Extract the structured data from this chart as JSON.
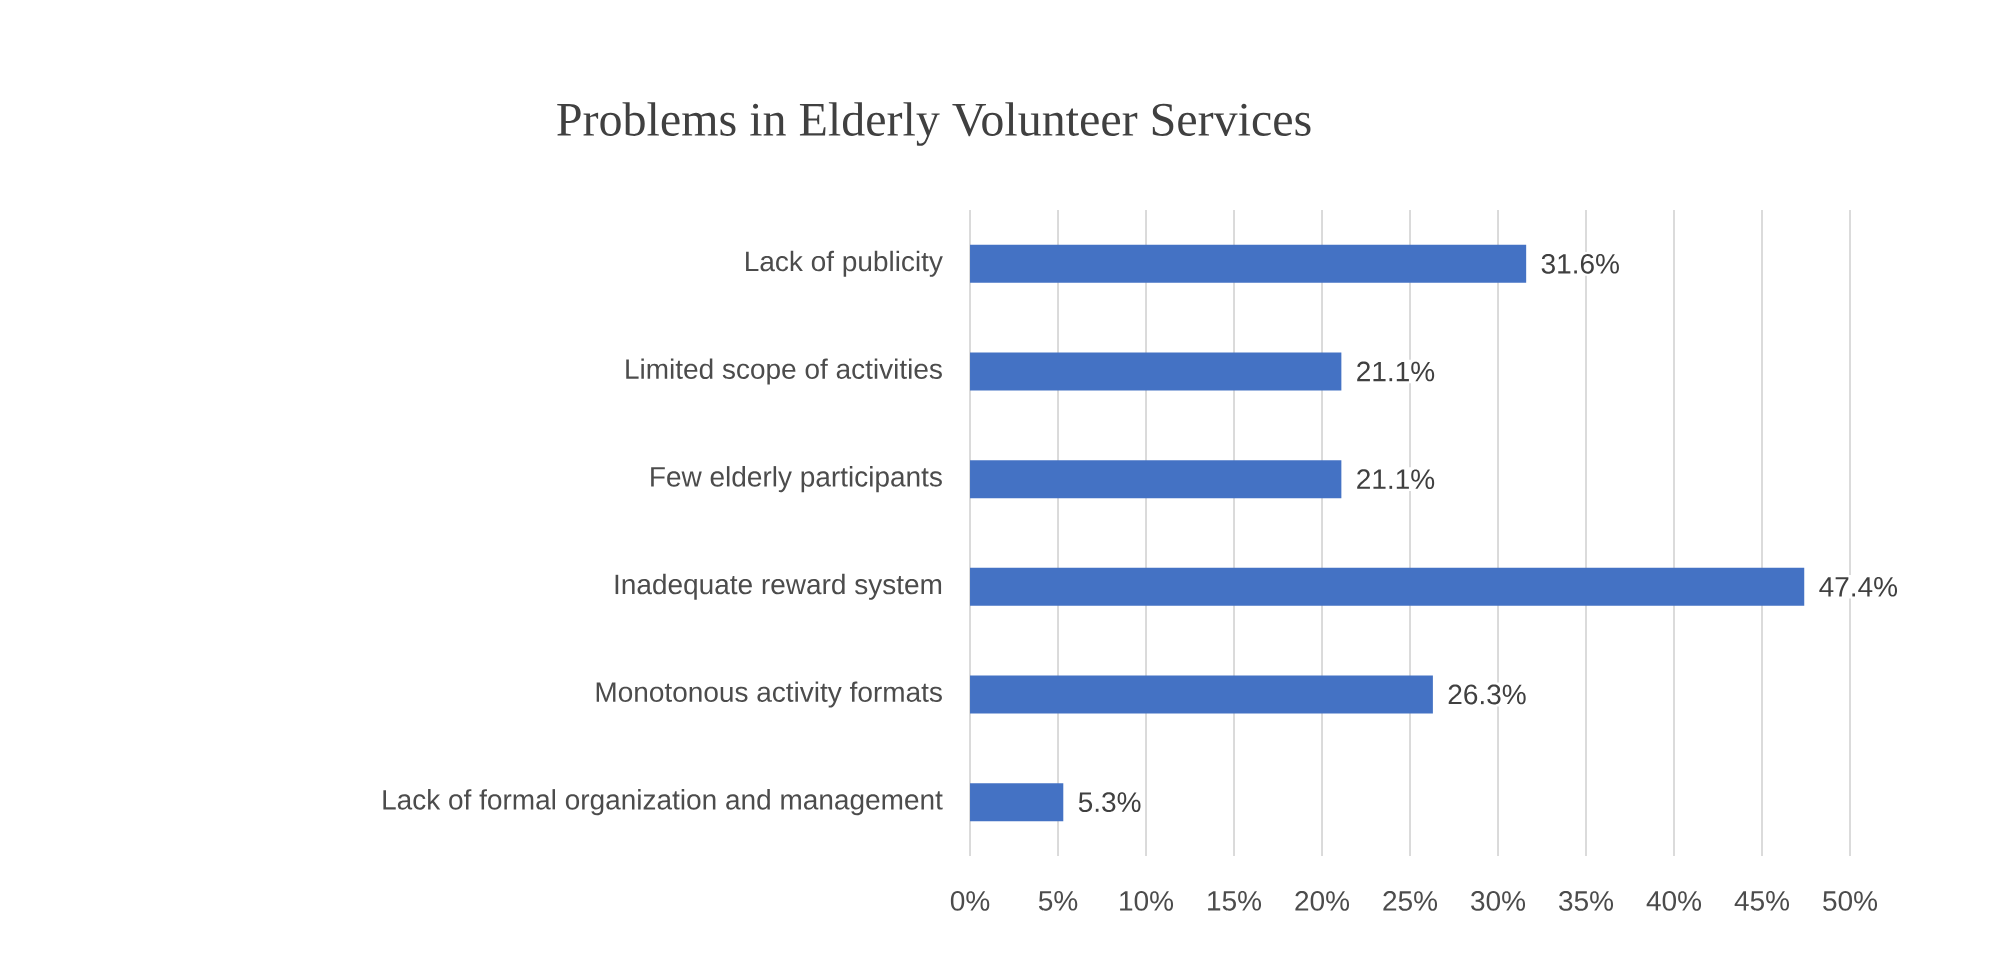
{
  "chart_data": {
    "type": "bar",
    "orientation": "horizontal",
    "title": "Problems in Elderly Volunteer Services",
    "categories": [
      "Lack of publicity",
      "Limited scope of activities",
      "Few elderly participants",
      "Inadequate reward system",
      "Monotonous activity formats",
      "Lack of formal organization and management"
    ],
    "values": [
      31.6,
      21.1,
      21.1,
      47.4,
      26.3,
      5.3
    ],
    "value_labels": [
      "31.6%",
      "21.1%",
      "21.1%",
      "47.4%",
      "26.3%",
      "5.3%"
    ],
    "color": "#4472c4",
    "xlim": [
      0,
      50
    ],
    "xticks": [
      {
        "value": 0,
        "label": "0%"
      },
      {
        "value": 5,
        "label": "5%"
      },
      {
        "value": 10,
        "label": "10%"
      },
      {
        "value": 15,
        "label": "15%"
      },
      {
        "value": 20,
        "label": "20%"
      },
      {
        "value": 25,
        "label": "25%"
      },
      {
        "value": 30,
        "label": "30%"
      },
      {
        "value": 35,
        "label": "35%"
      },
      {
        "value": 40,
        "label": "40%"
      },
      {
        "value": 45,
        "label": "45%"
      },
      {
        "value": 50,
        "label": "50%"
      }
    ],
    "grid": "x"
  }
}
